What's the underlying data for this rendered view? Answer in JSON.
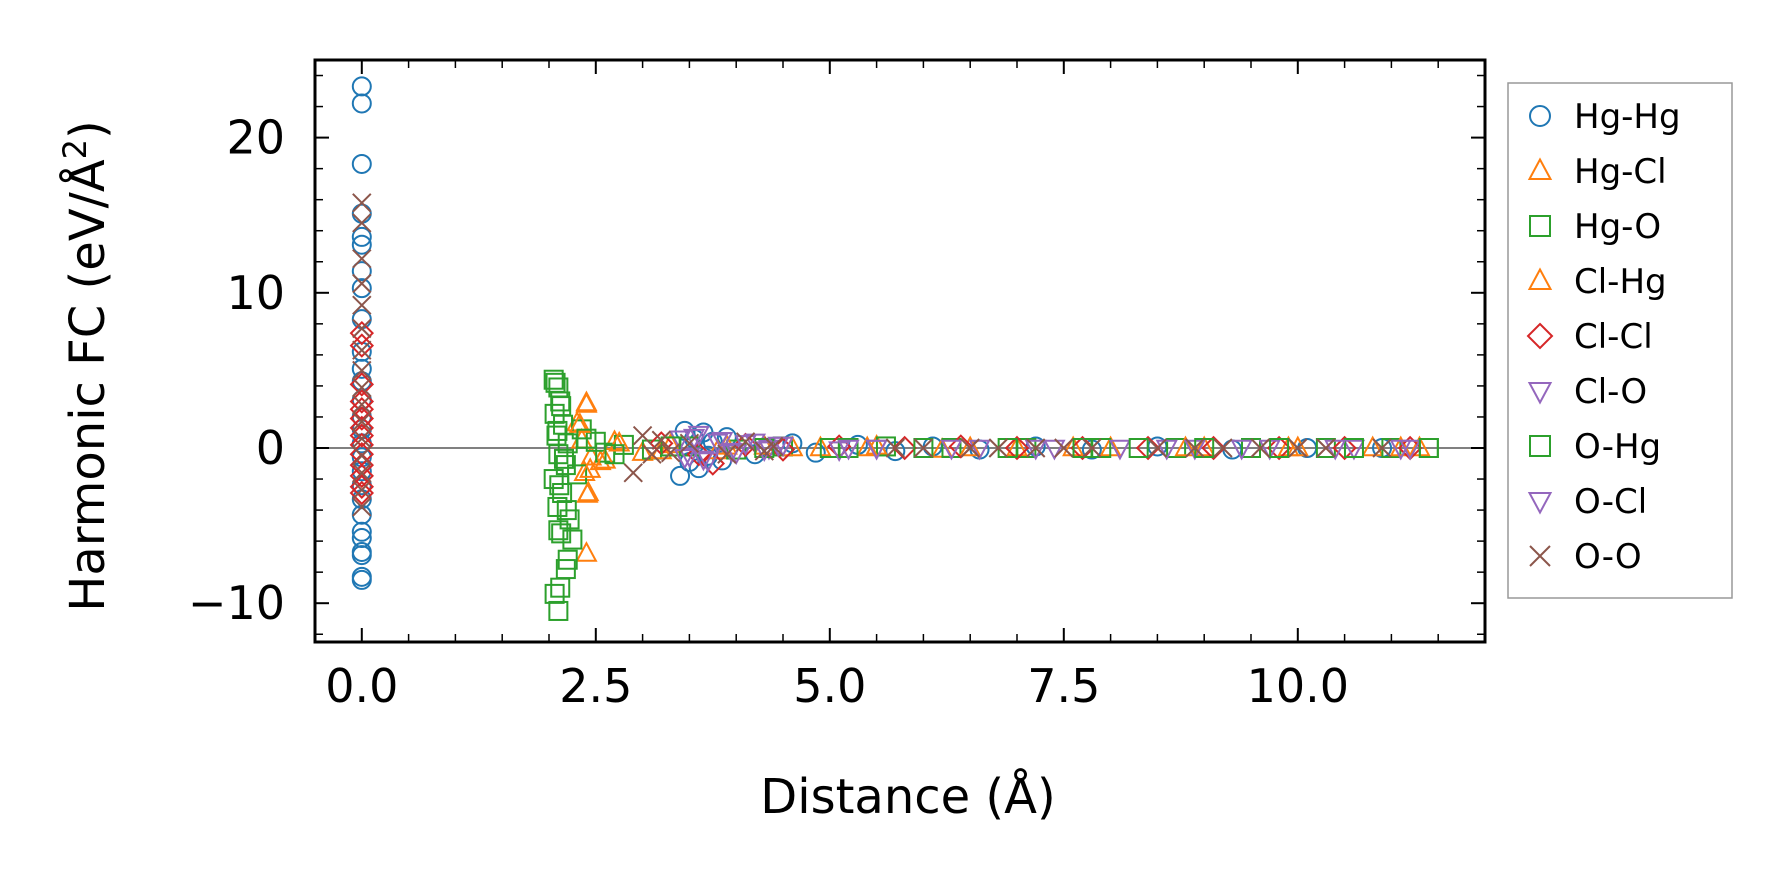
{
  "chart_data": {
    "type": "scatter",
    "title": "",
    "xlabel": "Distance (Å)",
    "ylabel": "Harmonic FC (eV/Å²)",
    "ylabel_main": "Harmonic FC (eV/Å",
    "ylabel_sup": "2",
    "ylabel_close": ")",
    "xlim": [
      -0.5,
      12.0
    ],
    "ylim": [
      -12.5,
      25.0
    ],
    "xticks": [
      0.0,
      2.5,
      5.0,
      7.5,
      10.0
    ],
    "xtick_labels": [
      "0.0",
      "2.5",
      "5.0",
      "7.5",
      "10.0"
    ],
    "yticks": [
      -10,
      0,
      10,
      20
    ],
    "ytick_labels": [
      "−10",
      "0",
      "10",
      "20"
    ],
    "reference_line_y": 0,
    "legend_position": "outside-right",
    "grid": false,
    "series": [
      {
        "name": "Hg-Hg",
        "marker": "circle",
        "color": "#1f77b4",
        "points": [
          [
            0,
            23.3
          ],
          [
            0,
            22.2
          ],
          [
            0,
            18.3
          ],
          [
            0,
            15.1
          ],
          [
            0,
            13.6
          ],
          [
            0,
            13.1
          ],
          [
            0,
            11.4
          ],
          [
            0,
            10.3
          ],
          [
            0,
            8.3
          ],
          [
            0,
            6.2
          ],
          [
            0,
            5.1
          ],
          [
            0,
            4.3
          ],
          [
            0,
            3.1
          ],
          [
            0,
            2.0
          ],
          [
            0,
            1.2
          ],
          [
            0,
            0.3
          ],
          [
            0,
            -0.6
          ],
          [
            0,
            -1.5
          ],
          [
            0,
            -2.4
          ],
          [
            0,
            -3.3
          ],
          [
            0,
            -4.3
          ],
          [
            0,
            -5.4
          ],
          [
            0,
            -5.8
          ],
          [
            0,
            -6.7
          ],
          [
            0,
            -6.9
          ],
          [
            0,
            -8.3
          ],
          [
            0,
            -8.5
          ],
          [
            3.4,
            -1.8
          ],
          [
            3.45,
            1.1
          ],
          [
            3.5,
            -0.9
          ],
          [
            3.55,
            0.6
          ],
          [
            3.6,
            -1.3
          ],
          [
            3.65,
            1.0
          ],
          [
            3.7,
            -0.5
          ],
          [
            3.75,
            0.4
          ],
          [
            3.85,
            -0.8
          ],
          [
            3.9,
            0.7
          ],
          [
            4.2,
            -0.4
          ],
          [
            4.6,
            0.3
          ],
          [
            4.85,
            -0.3
          ],
          [
            5.3,
            0.2
          ],
          [
            5.7,
            -0.2
          ],
          [
            6.1,
            0.1
          ],
          [
            6.6,
            -0.1
          ],
          [
            7.2,
            0.1
          ],
          [
            7.8,
            -0.1
          ],
          [
            8.5,
            0.1
          ],
          [
            9.3,
            -0.1
          ],
          [
            10.1,
            0.0
          ],
          [
            10.9,
            0.0
          ]
        ]
      },
      {
        "name": "Hg-Cl",
        "marker": "triangle-up",
        "color": "#ff7f0e",
        "points": [
          [
            2.4,
            2.8
          ],
          [
            2.3,
            1.6
          ],
          [
            2.35,
            0.5
          ],
          [
            2.45,
            -0.6
          ],
          [
            2.38,
            -1.6
          ],
          [
            2.42,
            -2.9
          ],
          [
            2.4,
            -6.8
          ],
          [
            2.55,
            -0.9
          ],
          [
            2.7,
            0.4
          ],
          [
            3.0,
            -0.3
          ],
          [
            3.3,
            0.2
          ],
          [
            3.8,
            -0.2
          ],
          [
            4.3,
            0.1
          ],
          [
            4.9,
            0.0
          ],
          [
            5.5,
            0.1
          ],
          [
            6.2,
            -0.1
          ],
          [
            7.0,
            0.0
          ],
          [
            8.0,
            0.0
          ],
          [
            9.0,
            0.0
          ],
          [
            10.0,
            0.0
          ],
          [
            10.8,
            0.0
          ],
          [
            11.3,
            0.0
          ]
        ]
      },
      {
        "name": "Hg-O",
        "marker": "square",
        "color": "#2ca02c",
        "points": [
          [
            2.05,
            4.4
          ],
          [
            2.1,
            3.9
          ],
          [
            2.12,
            3.0
          ],
          [
            2.06,
            2.2
          ],
          [
            2.15,
            1.5
          ],
          [
            2.08,
            0.8
          ],
          [
            2.2,
            0.3
          ],
          [
            2.1,
            -0.4
          ],
          [
            2.18,
            -1.1
          ],
          [
            2.05,
            -2.0
          ],
          [
            2.14,
            -2.9
          ],
          [
            2.09,
            -3.8
          ],
          [
            2.22,
            -4.6
          ],
          [
            2.1,
            -5.3
          ],
          [
            2.25,
            -5.9
          ],
          [
            2.2,
            -7.2
          ],
          [
            2.18,
            -7.8
          ],
          [
            2.12,
            -9.0
          ],
          [
            2.06,
            -9.4
          ],
          [
            2.1,
            -10.5
          ],
          [
            2.3,
            -1.7
          ],
          [
            2.35,
            1.2
          ],
          [
            2.5,
            0.4
          ],
          [
            2.6,
            -0.3
          ],
          [
            2.8,
            0.2
          ],
          [
            3.1,
            -0.1
          ],
          [
            3.5,
            0.1
          ],
          [
            4.0,
            -0.1
          ],
          [
            4.5,
            0.1
          ],
          [
            5.0,
            0.0
          ],
          [
            5.6,
            0.1
          ],
          [
            6.3,
            0.0
          ],
          [
            7.1,
            0.0
          ],
          [
            7.9,
            0.0
          ],
          [
            8.7,
            0.0
          ],
          [
            9.5,
            0.0
          ],
          [
            10.3,
            0.0
          ],
          [
            11.0,
            0.0
          ],
          [
            11.4,
            0.0
          ]
        ]
      },
      {
        "name": "Cl-Hg",
        "marker": "triangle-up",
        "color": "#ff7f0e",
        "points": [
          [
            2.4,
            2.9
          ],
          [
            2.33,
            1.5
          ],
          [
            2.44,
            -1.4
          ],
          [
            2.41,
            -3.0
          ],
          [
            2.6,
            -0.8
          ],
          [
            2.75,
            0.3
          ],
          [
            3.2,
            -0.2
          ],
          [
            3.9,
            0.1
          ],
          [
            4.6,
            0.0
          ],
          [
            5.4,
            0.0
          ],
          [
            6.5,
            0.0
          ],
          [
            7.6,
            0.0
          ],
          [
            8.8,
            0.0
          ],
          [
            9.9,
            0.0
          ],
          [
            11.1,
            0.0
          ]
        ]
      },
      {
        "name": "Cl-Cl",
        "marker": "diamond",
        "color": "#d62728",
        "points": [
          [
            0,
            7.4
          ],
          [
            0,
            6.6
          ],
          [
            0,
            4.1
          ],
          [
            0,
            3.0
          ],
          [
            0,
            2.5
          ],
          [
            0,
            1.9
          ],
          [
            0,
            1.3
          ],
          [
            0,
            0.8
          ],
          [
            0,
            0.2
          ],
          [
            0,
            -0.4
          ],
          [
            0,
            -1.1
          ],
          [
            0,
            -1.8
          ],
          [
            0,
            -2.5
          ],
          [
            0,
            -2.9
          ],
          [
            3.2,
            0.3
          ],
          [
            3.6,
            -0.4
          ],
          [
            3.75,
            -1.0
          ],
          [
            4.1,
            0.2
          ],
          [
            4.5,
            -0.1
          ],
          [
            5.1,
            0.1
          ],
          [
            5.8,
            0.0
          ],
          [
            6.4,
            0.1
          ],
          [
            7.0,
            0.0
          ],
          [
            7.7,
            0.0
          ],
          [
            8.4,
            0.0
          ],
          [
            9.1,
            0.0
          ],
          [
            9.8,
            0.0
          ],
          [
            10.5,
            0.0
          ],
          [
            11.2,
            0.0
          ]
        ]
      },
      {
        "name": "Cl-O",
        "marker": "triangle-down",
        "color": "#9467bd",
        "points": [
          [
            3.4,
            0.6
          ],
          [
            3.5,
            -0.5
          ],
          [
            3.6,
            0.9
          ],
          [
            3.7,
            -0.8
          ],
          [
            3.85,
            0.5
          ],
          [
            4.0,
            -0.3
          ],
          [
            4.2,
            0.4
          ],
          [
            4.35,
            0.0
          ],
          [
            4.5,
            0.2
          ],
          [
            5.1,
            -0.1
          ],
          [
            5.5,
            0.0
          ],
          [
            6.3,
            0.0
          ],
          [
            7.2,
            0.0
          ],
          [
            8.1,
            0.0
          ],
          [
            8.9,
            0.0
          ],
          [
            9.7,
            0.0
          ],
          [
            10.6,
            0.0
          ],
          [
            11.2,
            0.0
          ]
        ]
      },
      {
        "name": "O-Hg",
        "marker": "square",
        "color": "#2ca02c",
        "points": [
          [
            2.07,
            4.2
          ],
          [
            2.13,
            2.7
          ],
          [
            2.09,
            1.1
          ],
          [
            2.16,
            -0.7
          ],
          [
            2.11,
            -2.4
          ],
          [
            2.19,
            -4.0
          ],
          [
            2.13,
            -5.5
          ],
          [
            2.4,
            0.6
          ],
          [
            2.7,
            -0.4
          ],
          [
            3.3,
            0.1
          ],
          [
            4.3,
            0.0
          ],
          [
            5.2,
            0.0
          ],
          [
            6.0,
            0.0
          ],
          [
            6.9,
            0.0
          ],
          [
            7.7,
            0.0
          ],
          [
            8.3,
            0.0
          ],
          [
            9.0,
            0.0
          ],
          [
            9.8,
            0.0
          ],
          [
            10.6,
            0.0
          ],
          [
            11.4,
            0.0
          ]
        ]
      },
      {
        "name": "O-Cl",
        "marker": "triangle-down",
        "color": "#9467bd",
        "points": [
          [
            3.45,
            -0.6
          ],
          [
            3.55,
            0.7
          ],
          [
            3.65,
            -0.7
          ],
          [
            3.8,
            0.4
          ],
          [
            3.95,
            -0.2
          ],
          [
            4.1,
            0.3
          ],
          [
            4.3,
            -0.1
          ],
          [
            4.45,
            0.2
          ],
          [
            5.2,
            0.0
          ],
          [
            5.5,
            0.0
          ],
          [
            6.6,
            0.0
          ],
          [
            7.4,
            0.0
          ],
          [
            8.6,
            0.0
          ],
          [
            9.4,
            0.0
          ],
          [
            10.4,
            0.0
          ],
          [
            11.1,
            0.0
          ]
        ]
      },
      {
        "name": "O-O",
        "marker": "x",
        "color": "#8c564b",
        "points": [
          [
            0,
            15.8
          ],
          [
            0,
            14.5
          ],
          [
            0,
            12.2
          ],
          [
            0,
            10.6
          ],
          [
            0,
            9.2
          ],
          [
            0,
            7.7
          ],
          [
            0,
            6.3
          ],
          [
            0,
            5.0
          ],
          [
            0,
            3.9
          ],
          [
            0,
            2.8
          ],
          [
            0,
            1.7
          ],
          [
            0,
            0.6
          ],
          [
            0,
            -0.5
          ],
          [
            0,
            -1.6
          ],
          [
            0,
            -2.7
          ],
          [
            0,
            -3.8
          ],
          [
            2.9,
            -1.6
          ],
          [
            3.0,
            0.8
          ],
          [
            3.1,
            -0.4
          ],
          [
            3.2,
            0.5
          ],
          [
            3.3,
            -0.3
          ],
          [
            3.5,
            0.3
          ],
          [
            3.9,
            -0.4
          ],
          [
            4.1,
            0.4
          ],
          [
            4.3,
            -0.2
          ],
          [
            4.4,
            0.1
          ],
          [
            5.7,
            0.0
          ],
          [
            6.0,
            0.0
          ],
          [
            6.5,
            0.0
          ],
          [
            6.8,
            0.0
          ],
          [
            7.2,
            0.0
          ],
          [
            7.5,
            0.0
          ],
          [
            7.8,
            0.0
          ],
          [
            8.5,
            0.0
          ],
          [
            8.9,
            0.0
          ],
          [
            9.2,
            0.0
          ],
          [
            9.6,
            0.0
          ],
          [
            10.0,
            0.0
          ],
          [
            10.3,
            0.0
          ],
          [
            10.9,
            0.0
          ]
        ]
      }
    ]
  }
}
